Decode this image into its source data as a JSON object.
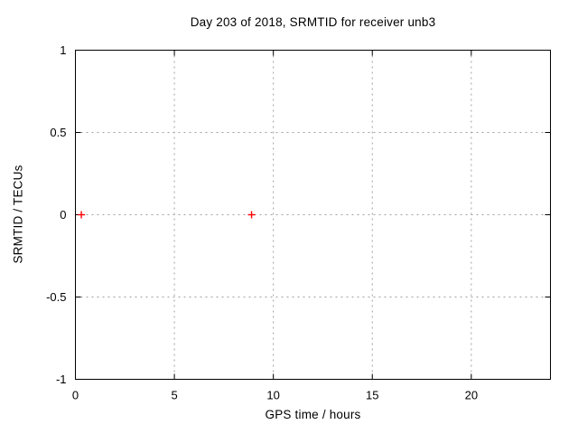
{
  "window": {
    "background": "#ffffff"
  },
  "chart_data": {
    "type": "scatter",
    "title": "Day 203 of 2018, SRMTID for receiver unb3",
    "xlabel": "GPS time / hours",
    "ylabel": "SRMTID / TECUs",
    "xlim": [
      0,
      24
    ],
    "ylim": [
      -1,
      1
    ],
    "xticks": [
      {
        "v": 0,
        "label": "0"
      },
      {
        "v": 5,
        "label": "5"
      },
      {
        "v": 10,
        "label": "10"
      },
      {
        "v": 15,
        "label": "15"
      },
      {
        "v": 20,
        "label": "20"
      }
    ],
    "yticks": [
      {
        "v": -1,
        "label": "-1"
      },
      {
        "v": -0.5,
        "label": "-0.5"
      },
      {
        "v": 0,
        "label": "0"
      },
      {
        "v": 0.5,
        "label": "0.5"
      },
      {
        "v": 1,
        "label": "1"
      }
    ],
    "grid": {
      "on": true,
      "color": "#a0a0a0",
      "style": "dotted"
    },
    "legend": "none",
    "border_color": "#000000",
    "series": [
      {
        "marker": "plus",
        "color": "#ff0000",
        "points": [
          [
            0.3,
            0
          ],
          [
            8.9,
            0
          ]
        ]
      }
    ]
  }
}
